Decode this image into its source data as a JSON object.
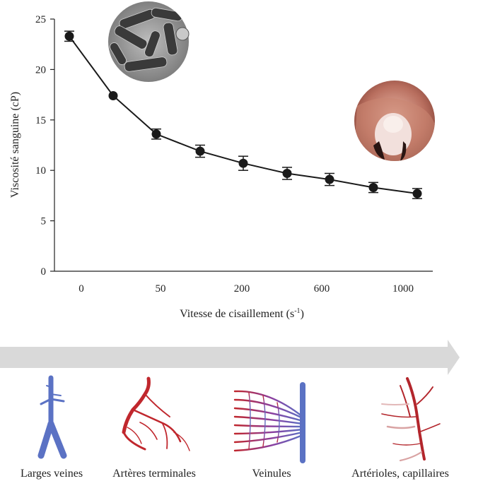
{
  "chart_data": {
    "type": "line",
    "xlabel": "Vitesse de cisaillement (s",
    "xlabel_superscript": "-1",
    "xlabel_suffix": ")",
    "ylabel": "Viscosité sanguine (cP)",
    "ylim": [
      0,
      25
    ],
    "y_ticks": [
      0,
      5,
      10,
      15,
      20,
      25
    ],
    "x_tick_labels": [
      "0",
      "50",
      "200",
      "600",
      "1000"
    ],
    "grid": false,
    "error_bars": true,
    "points": [
      {
        "x": 0,
        "y": 23.3,
        "err": 0.5
      },
      {
        "x": 20,
        "y": 17.4,
        "err": 0.0
      },
      {
        "x": 50,
        "y": 13.6,
        "err": 0.5
      },
      {
        "x": 120,
        "y": 11.9,
        "err": 0.6
      },
      {
        "x": 200,
        "y": 10.7,
        "err": 0.7
      },
      {
        "x": 400,
        "y": 9.7,
        "err": 0.6
      },
      {
        "x": 600,
        "y": 9.1,
        "err": 0.6
      },
      {
        "x": 800,
        "y": 8.3,
        "err": 0.5
      },
      {
        "x": 1000,
        "y": 7.7,
        "err": 0.5
      }
    ],
    "line_color": "#1a1a1a",
    "marker_color": "#1a1a1a"
  },
  "vessels": {
    "arrow_color": "#d9d9d9",
    "items": [
      {
        "label": "Larges veines",
        "color": "#5b72c4"
      },
      {
        "label": "Artères terminales",
        "color": "#c0272d"
      },
      {
        "label": "Veinules",
        "color": "#5b72c4"
      },
      {
        "label": "Artérioles, capillaires",
        "color": "#b3262c"
      }
    ]
  }
}
